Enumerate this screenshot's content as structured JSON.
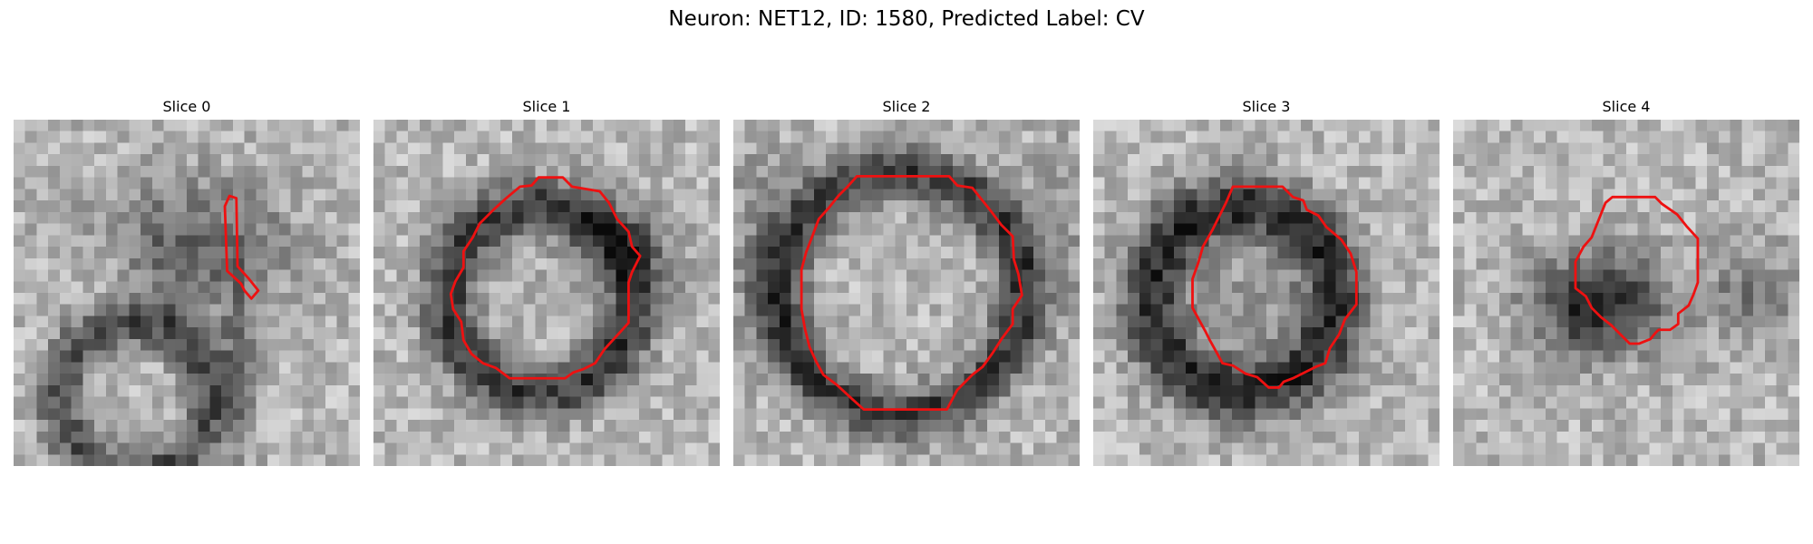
{
  "figure": {
    "title": "Neuron: NET12, ID: 1580, Predicted Label: CV"
  },
  "panels": [
    {
      "title": "Slice 0",
      "kind": "em-patch-0"
    },
    {
      "title": "Slice 1",
      "kind": "em-patch-1"
    },
    {
      "title": "Slice 2",
      "kind": "em-patch-2"
    },
    {
      "title": "Slice 3",
      "kind": "em-patch-3"
    },
    {
      "title": "Slice 4",
      "kind": "em-patch-4"
    }
  ],
  "colors": {
    "contour": "#ee1111"
  }
}
